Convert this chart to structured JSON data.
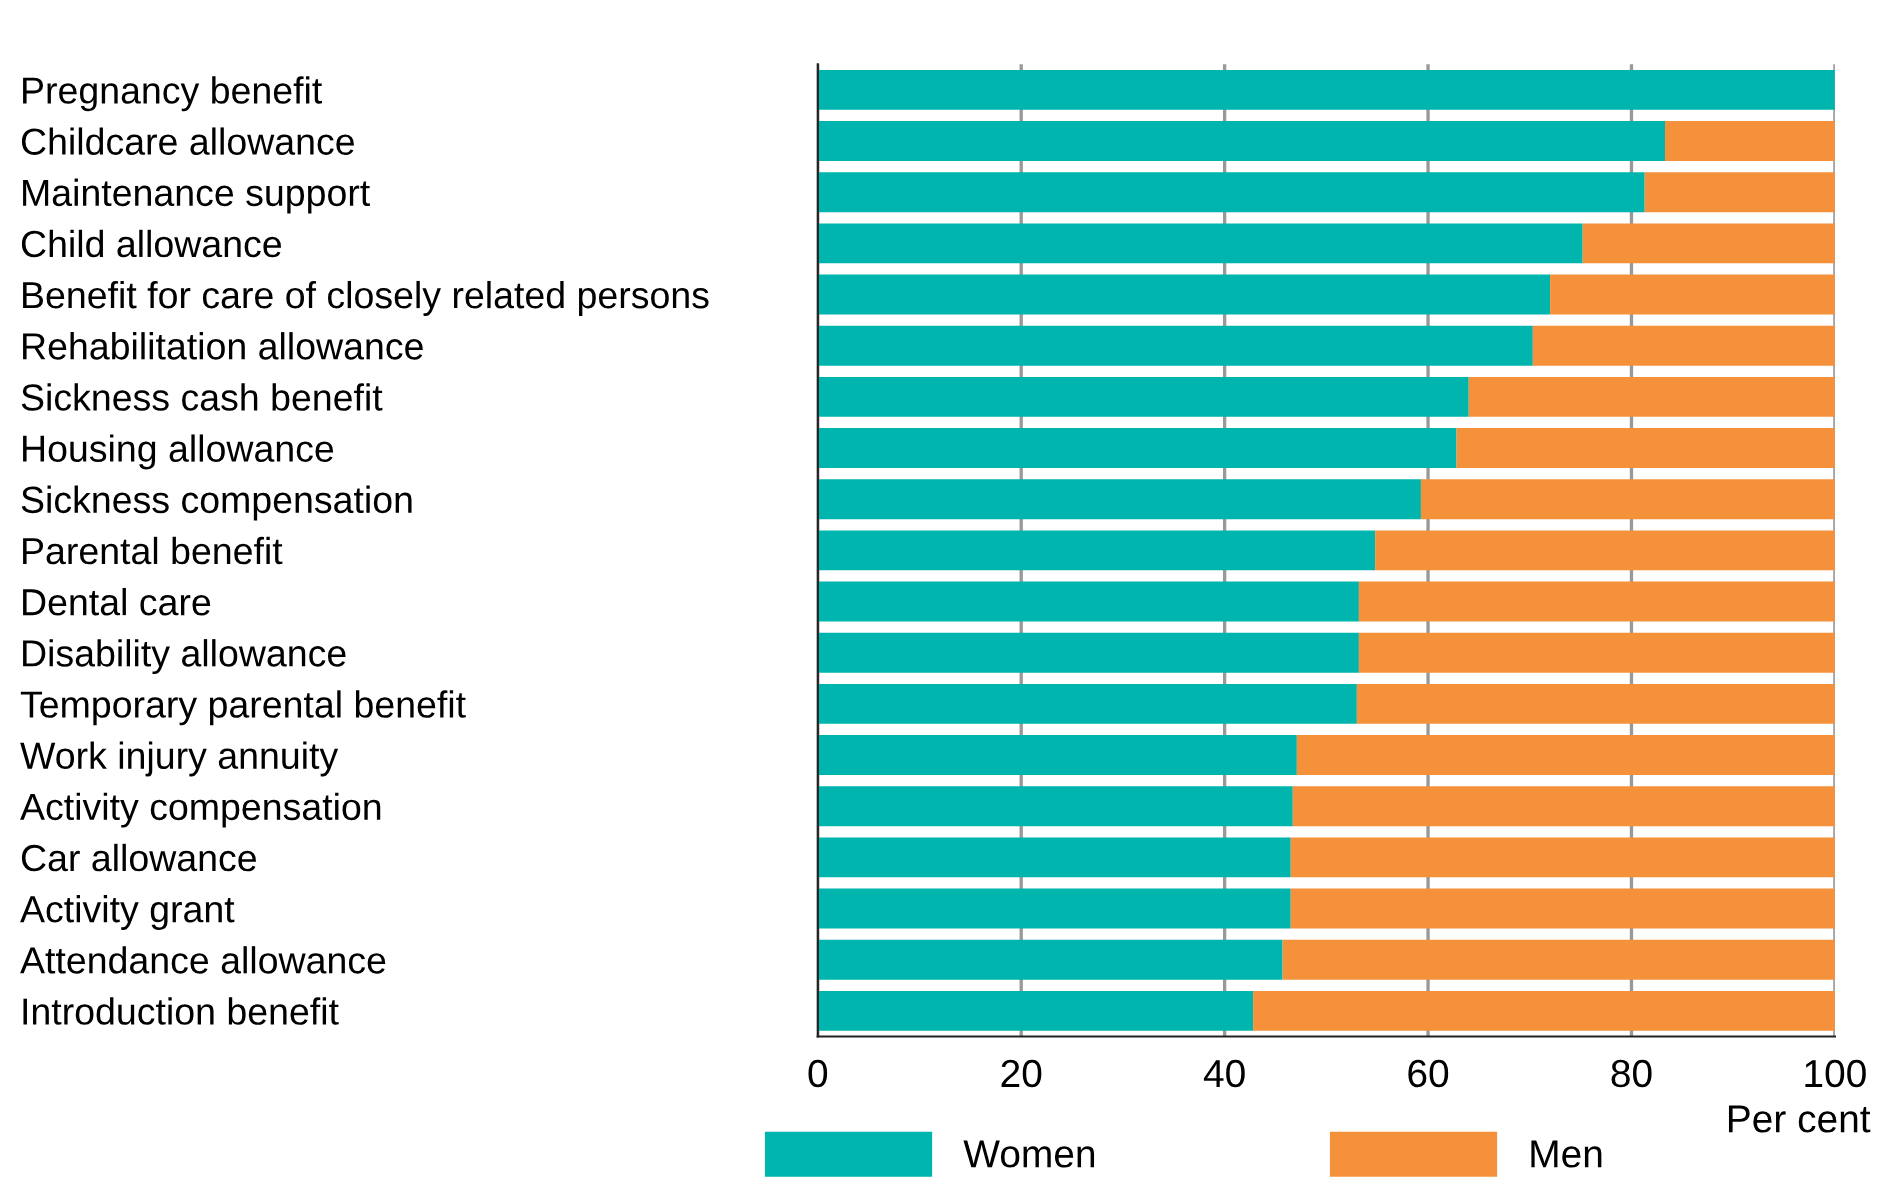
{
  "chart_data": {
    "type": "bar",
    "orientation": "horizontal",
    "stacked": true,
    "xlabel": "Per cent",
    "categories": [
      "Pregnancy benefit",
      "Childcare allowance",
      "Maintenance support",
      "Child allowance",
      "Benefit for care of closely related persons",
      "Rehabilitation allowance",
      "Sickness cash benefit",
      "Housing allowance",
      "Sickness compensation",
      "Parental benefit",
      "Dental care",
      "Disability allowance",
      "Temporary parental benefit",
      "Work injury annuity",
      "Activity compensation",
      "Car allowance",
      "Activity grant",
      "Attendance allowance",
      "Introduction benefit"
    ],
    "series": [
      {
        "name": "Women",
        "color": "#00b5ad",
        "values": [
          100,
          83.3,
          81.3,
          75.2,
          72.0,
          70.3,
          64.0,
          62.8,
          59.3,
          54.8,
          53.2,
          53.2,
          53.0,
          47.1,
          46.7,
          46.5,
          46.5,
          45.7,
          42.8
        ]
      },
      {
        "name": "Men",
        "color": "#f5903b",
        "values": [
          0,
          16.7,
          18.7,
          24.8,
          28.0,
          29.7,
          36.0,
          37.2,
          40.7,
          45.2,
          46.8,
          46.8,
          47.0,
          52.9,
          53.3,
          53.5,
          53.5,
          54.3,
          57.2
        ]
      }
    ],
    "xlim": [
      0,
      100
    ],
    "xticks": [
      0,
      20,
      40,
      60,
      80,
      100
    ],
    "grid": "x",
    "legend": "bottom"
  }
}
